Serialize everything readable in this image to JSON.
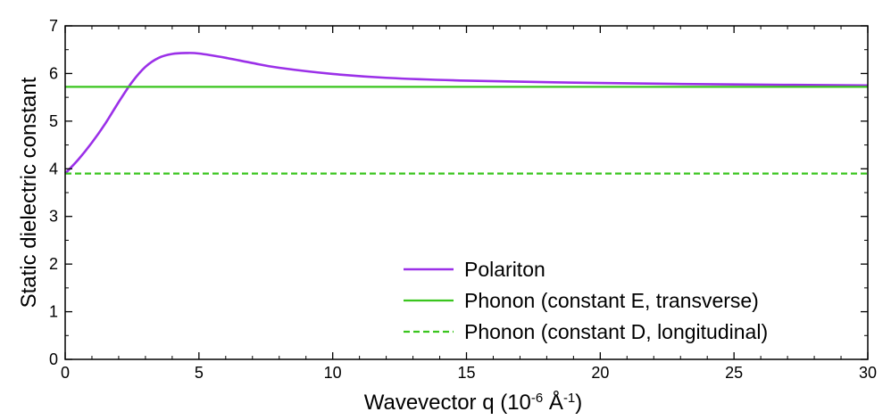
{
  "chart_data": {
    "type": "line",
    "xlabel_main": "Wavevector q (10",
    "xlabel_exp1": "-6",
    "xlabel_mid": " Å",
    "xlabel_exp2": "-1",
    "xlabel_end": ")",
    "ylabel": "Static dielectric constant",
    "xlim": [
      0,
      30
    ],
    "ylim": [
      0,
      7
    ],
    "xticks": [
      0,
      5,
      10,
      15,
      20,
      25,
      30
    ],
    "yticks": [
      0,
      1,
      2,
      3,
      4,
      5,
      6,
      7
    ],
    "legend_position": "bottom-right",
    "grid": false,
    "series": [
      {
        "name": "Polariton",
        "color": "#9b30e8",
        "style": "solid",
        "x": [
          0,
          0.5,
          1,
          1.5,
          2,
          2.5,
          3,
          3.5,
          4,
          4.5,
          5,
          6,
          7,
          8,
          10,
          12,
          15,
          20,
          25,
          30
        ],
        "y": [
          3.9,
          4.2,
          4.55,
          4.95,
          5.4,
          5.82,
          6.14,
          6.33,
          6.41,
          6.43,
          6.42,
          6.33,
          6.22,
          6.12,
          5.99,
          5.91,
          5.85,
          5.8,
          5.77,
          5.75
        ]
      },
      {
        "name": "Phonon (constant E, transverse)",
        "color": "#3ac51e",
        "style": "solid",
        "x": [
          0,
          30
        ],
        "y": [
          5.72,
          5.72
        ]
      },
      {
        "name": "Phonon (constant D, longitudinal)",
        "color": "#3ac51e",
        "style": "dashed",
        "x": [
          0,
          30
        ],
        "y": [
          3.9,
          3.9
        ]
      }
    ]
  }
}
